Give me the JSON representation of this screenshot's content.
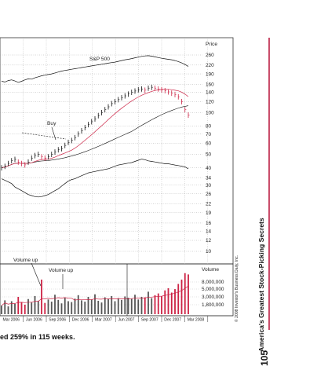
{
  "chart_data": {
    "type": "stock-chart",
    "price_axis_title": "Price",
    "price_ticks": [
      "260",
      "220",
      "190",
      "160",
      "140",
      "120",
      "100",
      "80",
      "70",
      "60",
      "50",
      "40",
      "34",
      "30",
      "26",
      "22",
      "19",
      "16",
      "14",
      "12",
      "10"
    ],
    "volume_axis_title": "Volume",
    "volume_ticks": [
      "8,000,000",
      "5,000,000",
      "3,000,000",
      "1,800,000"
    ],
    "dates": [
      "Mar 2006",
      "Jun 2006",
      "Sep 2006",
      "Dec 2006",
      "Mar 2007",
      "Jun 2007",
      "Sep 2007",
      "Dec 2007",
      "Mar 2008"
    ],
    "sp500_label": "S&P 500",
    "annotations": {
      "buy": "Buy",
      "volume_up_1": "Volume up",
      "volume_up_2": "Volume up"
    },
    "copyright": "© 2008 Investor's Business Daily, Inc.",
    "price": [
      40,
      41,
      43,
      45,
      46,
      44,
      43,
      42,
      44,
      47,
      49,
      50,
      48,
      47,
      48,
      50,
      52,
      54,
      55,
      58,
      61,
      63,
      66,
      70,
      74,
      78,
      82,
      86,
      90,
      95,
      100,
      105,
      110,
      116,
      120,
      124,
      128,
      132,
      136,
      140,
      143,
      146,
      148,
      145,
      150,
      152,
      150,
      148,
      146,
      144,
      141,
      138,
      135,
      130,
      120,
      105,
      96
    ],
    "sp500": [
      168,
      166,
      170,
      172,
      169,
      165,
      168,
      172,
      175,
      174,
      178,
      181,
      184,
      186,
      188,
      190,
      193,
      196,
      199,
      201,
      203,
      205,
      207,
      209,
      211,
      213,
      215,
      217,
      219,
      221,
      223,
      225,
      227,
      229,
      231,
      234,
      237,
      240,
      242,
      245,
      248,
      251,
      254,
      256,
      257,
      255,
      252,
      249,
      246,
      244,
      242,
      240,
      237,
      233,
      228,
      222,
      215
    ],
    "rs_line": [
      39,
      38,
      37,
      36,
      34,
      33,
      32,
      31,
      30,
      29.5,
      29,
      28.8,
      29,
      29.5,
      30,
      31,
      32,
      33,
      34.5,
      36,
      37.5,
      38.5,
      39,
      40,
      41,
      42,
      43,
      43.5,
      44,
      44.5,
      45,
      45.5,
      46,
      47,
      48,
      49,
      49.5,
      50,
      50.5,
      51,
      52,
      53,
      54,
      53.5,
      52.5,
      52,
      51.5,
      51,
      50.5,
      50,
      50,
      49.5,
      49,
      48.5,
      48,
      47.5,
      46
    ],
    "volume_relative": [
      0.2,
      0.32,
      0.18,
      0.3,
      0.24,
      0.4,
      0.28,
      0.22,
      0.35,
      0.27,
      0.42,
      0.31,
      0.8,
      0.26,
      0.34,
      0.29,
      0.45,
      0.33,
      0.25,
      0.38,
      0.3,
      0.28,
      0.36,
      0.44,
      0.32,
      0.29,
      0.4,
      0.34,
      0.46,
      0.31,
      0.27,
      0.39,
      0.35,
      0.42,
      0.3,
      0.37,
      0.33,
      0.41,
      0.38,
      0.36,
      0.45,
      0.34,
      0.4,
      0.39,
      0.52,
      0.37,
      0.44,
      0.48,
      0.41,
      0.55,
      0.6,
      0.5,
      0.58,
      0.7,
      0.8,
      0.95,
      0.92
    ]
  },
  "sidebar_title": "America's Greatest Stock-Picking Secrets",
  "page_number": "105",
  "caption": "ed 259% in 115 weeks."
}
